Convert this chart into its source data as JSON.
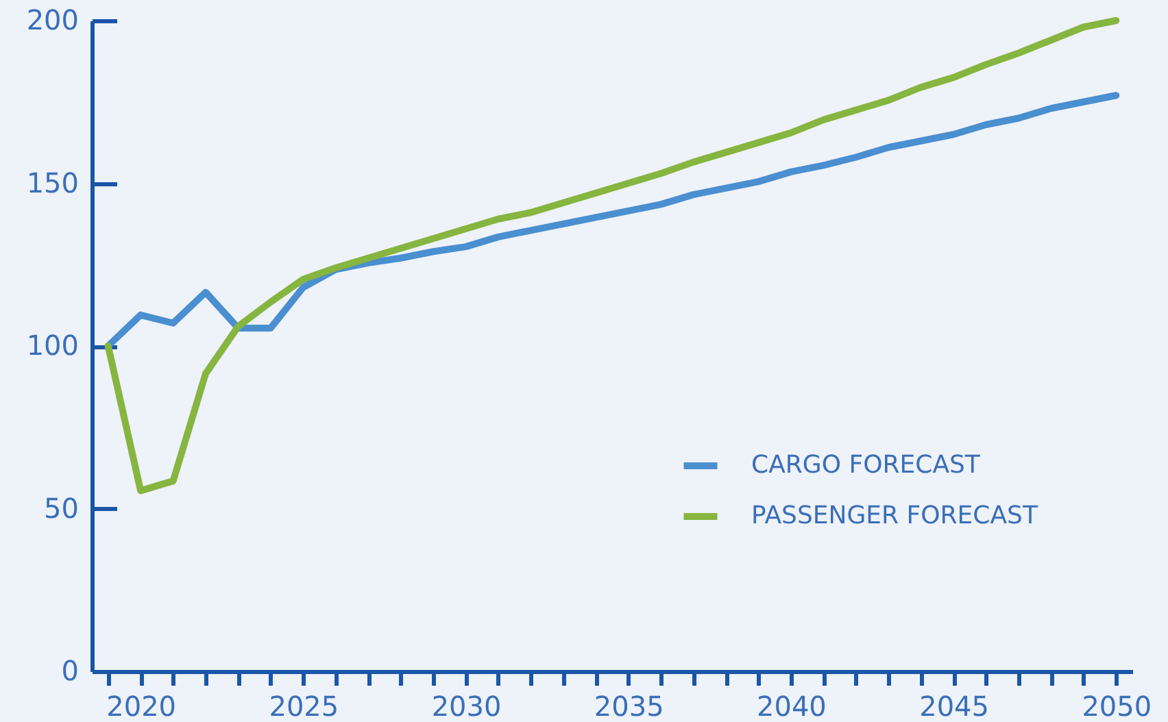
{
  "chart_data": {
    "type": "line",
    "x": [
      2019,
      2020,
      2021,
      2022,
      2023,
      2024,
      2025,
      2026,
      2027,
      2028,
      2029,
      2030,
      2031,
      2032,
      2033,
      2034,
      2035,
      2036,
      2037,
      2038,
      2039,
      2040,
      2041,
      2042,
      2043,
      2044,
      2045,
      2046,
      2047,
      2048,
      2049,
      2050
    ],
    "series": [
      {
        "name": "CARGO FORECAST",
        "color": "#4a8fd0",
        "values": [
          100,
          109.5,
          107,
          116.5,
          105.5,
          105.5,
          118,
          123.5,
          125.5,
          127,
          129,
          130.5,
          133.5,
          135.5,
          137.5,
          139.5,
          141.5,
          143.5,
          146.5,
          148.5,
          150.5,
          153.5,
          155.5,
          158,
          161,
          163,
          165,
          168,
          170,
          173,
          175,
          177
        ]
      },
      {
        "name": "PASSENGER FORECAST",
        "color": "#86b540",
        "values": [
          100,
          55.5,
          58.5,
          91.5,
          106,
          113.5,
          120.5,
          124,
          127,
          130,
          133,
          136,
          139,
          141,
          144,
          147,
          150,
          153,
          156.5,
          159.5,
          162.5,
          165.5,
          169.5,
          172.5,
          175.5,
          179.5,
          182.5,
          186.5,
          190,
          194,
          198,
          200
        ]
      }
    ],
    "xlim": [
      2018.5,
      2050.5
    ],
    "xticks": [
      {
        "value": 2019,
        "label": null
      },
      2020,
      {
        "value": 2021,
        "label": null
      },
      {
        "value": 2022,
        "label": null
      },
      {
        "value": 2023,
        "label": null
      },
      {
        "value": 2024,
        "label": null
      },
      2025,
      {
        "value": 2026,
        "label": null
      },
      {
        "value": 2027,
        "label": null
      },
      {
        "value": 2028,
        "label": null
      },
      {
        "value": 2029,
        "label": null
      },
      2030,
      {
        "value": 2031,
        "label": null
      },
      {
        "value": 2032,
        "label": null
      },
      {
        "value": 2033,
        "label": null
      },
      {
        "value": 2034,
        "label": null
      },
      2035,
      {
        "value": 2036,
        "label": null
      },
      {
        "value": 2037,
        "label": null
      },
      {
        "value": 2038,
        "label": null
      },
      {
        "value": 2039,
        "label": null
      },
      2040,
      {
        "value": 2041,
        "label": null
      },
      {
        "value": 2042,
        "label": null
      },
      {
        "value": 2043,
        "label": null
      },
      {
        "value": 2044,
        "label": null
      },
      2045,
      {
        "value": 2046,
        "label": null
      },
      {
        "value": 2047,
        "label": null
      },
      {
        "value": 2048,
        "label": null
      },
      {
        "value": 2049,
        "label": null
      },
      2050
    ],
    "ylim": [
      0,
      200
    ],
    "yticks": [
      0,
      50,
      100,
      150,
      200
    ],
    "grid": false,
    "legend": "bottom right",
    "marker": "none",
    "line_style": "solid"
  }
}
